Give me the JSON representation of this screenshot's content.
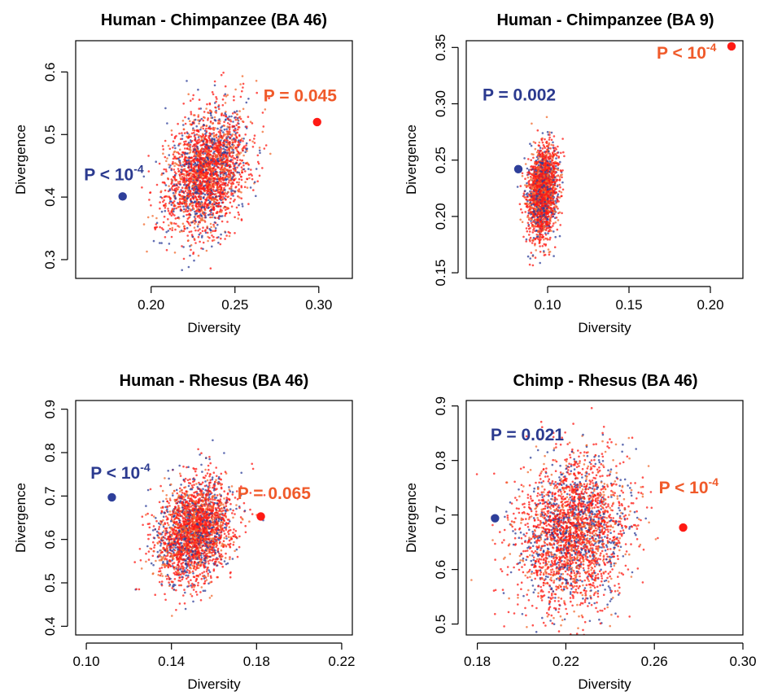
{
  "colors": {
    "blue": "#2e3f9a",
    "red": "#ff1a14",
    "orange": "#f26a2e",
    "annotation_blue": "#2b3a8f",
    "annotation_red": "#f05a2a",
    "axis": "#000000"
  },
  "chart_data": [
    {
      "type": "scatter",
      "title": "Human - Chimpanzee (BA 46)",
      "xlabel": "Diversity",
      "ylabel": "Divergence",
      "xlim": [
        0.155,
        0.32
      ],
      "ylim": [
        0.27,
        0.65
      ],
      "xticks": [
        "0.20",
        "0.25",
        "0.30"
      ],
      "xtick_values": [
        0.2,
        0.25,
        0.3
      ],
      "yticks": [
        "0.3",
        "0.4",
        "0.5",
        "0.6"
      ],
      "ytick_values": [
        0.3,
        0.4,
        0.5,
        0.6
      ],
      "cloud": {
        "center": [
          0.233,
          0.44
        ],
        "spread": [
          0.012,
          0.048
        ],
        "corr": 0.3,
        "n": 2600
      },
      "series": [
        {
          "color": "blue",
          "x": 0.183,
          "y": 0.401
        },
        {
          "color": "red",
          "x": 0.299,
          "y": 0.52
        }
      ],
      "annotations": [
        {
          "color": "blue",
          "base": "P < 10",
          "sup": "-4",
          "x": 0.16,
          "y": 0.427
        },
        {
          "color": "red",
          "base": "P = 0.045",
          "sup": "",
          "x": 0.267,
          "y": 0.553
        }
      ]
    },
    {
      "type": "scatter",
      "title": "Human - Chimpanzee (BA 9)",
      "xlabel": "Diversity",
      "ylabel": "Divergence",
      "xlim": [
        0.05,
        0.22
      ],
      "ylim": [
        0.145,
        0.356
      ],
      "xticks": [
        "0.10",
        "0.15",
        "0.20"
      ],
      "xtick_values": [
        0.1,
        0.15,
        0.2
      ],
      "yticks": [
        "0.15",
        "0.20",
        "0.25",
        "0.30",
        "0.35"
      ],
      "ytick_values": [
        0.15,
        0.2,
        0.25,
        0.3,
        0.35
      ],
      "cloud": {
        "center": [
          0.097,
          0.222
        ],
        "spread": [
          0.0045,
          0.02
        ],
        "corr": 0.2,
        "n": 2000
      },
      "series": [
        {
          "color": "blue",
          "x": 0.082,
          "y": 0.242
        },
        {
          "color": "red",
          "x": 0.213,
          "y": 0.351
        }
      ],
      "annotations": [
        {
          "color": "blue",
          "base": "P = 0.002",
          "sup": "",
          "x": 0.06,
          "y": 0.303
        },
        {
          "color": "red",
          "base": "P < 10",
          "sup": "-4",
          "x": 0.167,
          "y": 0.34
        }
      ]
    },
    {
      "type": "scatter",
      "title": "Human - Rhesus (BA 46)",
      "xlabel": "Diversity",
      "ylabel": "Divergence",
      "xlim": [
        0.095,
        0.225
      ],
      "ylim": [
        0.38,
        0.92
      ],
      "xticks": [
        "0.10",
        "0.14",
        "0.18",
        "0.22"
      ],
      "xtick_values": [
        0.1,
        0.14,
        0.18,
        0.22
      ],
      "yticks": [
        "0.4",
        "0.5",
        "0.6",
        "0.7",
        "0.8",
        "0.9"
      ],
      "ytick_values": [
        0.4,
        0.5,
        0.6,
        0.7,
        0.8,
        0.9
      ],
      "cloud": {
        "center": [
          0.151,
          0.62
        ],
        "spread": [
          0.0085,
          0.058
        ],
        "corr": 0.25,
        "n": 2600
      },
      "series": [
        {
          "color": "blue",
          "x": 0.112,
          "y": 0.697
        },
        {
          "color": "red",
          "x": 0.182,
          "y": 0.653
        }
      ],
      "annotations": [
        {
          "color": "blue",
          "base": "P < 10",
          "sup": "-4",
          "x": 0.102,
          "y": 0.74
        },
        {
          "color": "red",
          "base": "P = 0.065",
          "sup": "",
          "x": 0.171,
          "y": 0.693
        }
      ]
    },
    {
      "type": "scatter",
      "title": "Chimp - Rhesus (BA 46)",
      "xlabel": "Diversity",
      "ylabel": "Divergence",
      "xlim": [
        0.175,
        0.3
      ],
      "ylim": [
        0.48,
        0.91
      ],
      "xticks": [
        "0.18",
        "0.22",
        "0.26",
        "0.30"
      ],
      "xtick_values": [
        0.18,
        0.22,
        0.26,
        0.3
      ],
      "yticks": [
        "0.5",
        "0.6",
        "0.7",
        "0.8",
        "0.9"
      ],
      "ytick_values": [
        0.5,
        0.6,
        0.7,
        0.8,
        0.9
      ],
      "cloud": {
        "center": [
          0.223,
          0.67
        ],
        "spread": [
          0.0125,
          0.068
        ],
        "corr": 0.15,
        "n": 2700
      },
      "series": [
        {
          "color": "blue",
          "x": 0.188,
          "y": 0.694
        },
        {
          "color": "red",
          "x": 0.273,
          "y": 0.677
        }
      ],
      "annotations": [
        {
          "color": "blue",
          "base": "P = 0.021",
          "sup": "",
          "x": 0.186,
          "y": 0.837
        },
        {
          "color": "red",
          "base": "P < 10",
          "sup": "-4",
          "x": 0.262,
          "y": 0.74
        }
      ]
    }
  ]
}
